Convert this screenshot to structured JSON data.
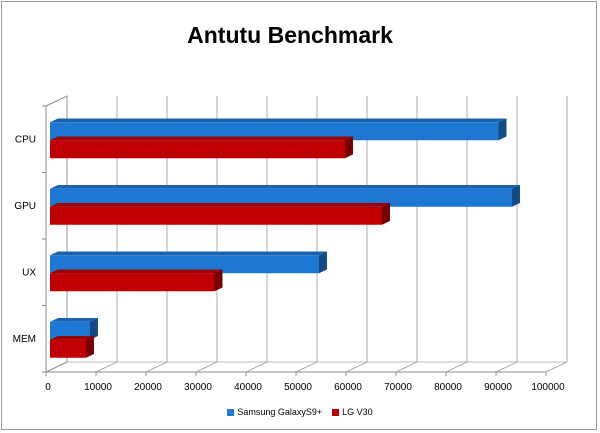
{
  "chart_data": {
    "type": "bar",
    "orientation": "horizontal",
    "title": "Antutu Benchmark",
    "categories": [
      "CPU",
      "GPU",
      "UX",
      "MEM"
    ],
    "series": [
      {
        "name": "Samsung GalaxyS9+",
        "color": "#1f77d4",
        "values": [
          90500,
          93200,
          54600,
          8800
        ]
      },
      {
        "name": "LG V30",
        "color": "#c00000",
        "values": [
          59800,
          67200,
          33700,
          8000
        ]
      }
    ],
    "xlim": [
      0,
      100000
    ],
    "xticks": [
      "0",
      "10000",
      "20000",
      "30000",
      "40000",
      "50000",
      "60000",
      "70000",
      "80000",
      "90000",
      "100000"
    ],
    "grid": true,
    "legend_position": "bottom"
  }
}
